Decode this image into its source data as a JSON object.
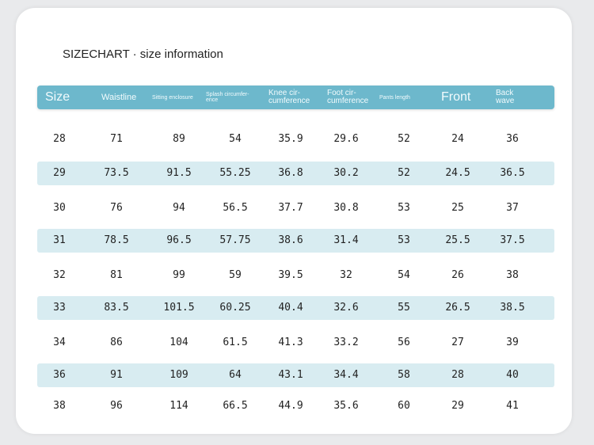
{
  "title": "SIZECHART · size information",
  "headers": [
    {
      "line1": "Size",
      "line2": ""
    },
    {
      "line1": "Waistline",
      "line2": ""
    },
    {
      "line1": "Sitting enclosure",
      "line2": ""
    },
    {
      "line1": "Splash circumfer-",
      "line2": "ence"
    },
    {
      "line1": "Knee cir-",
      "line2": "cumference"
    },
    {
      "line1": "Foot cir-",
      "line2": "cumference"
    },
    {
      "line1": "Pants length",
      "line2": ""
    },
    {
      "line1": "Front",
      "line2": ""
    },
    {
      "line1": "Back",
      "line2": "wave"
    }
  ],
  "rows": [
    [
      "28",
      "71",
      "89",
      "54",
      "35.9",
      "29.6",
      "52",
      "24",
      "36"
    ],
    [
      "29",
      "73.5",
      "91.5",
      "55.25",
      "36.8",
      "30.2",
      "52",
      "24.5",
      "36.5"
    ],
    [
      "30",
      "76",
      "94",
      "56.5",
      "37.7",
      "30.8",
      "53",
      "25",
      "37"
    ],
    [
      "31",
      "78.5",
      "96.5",
      "57.75",
      "38.6",
      "31.4",
      "53",
      "25.5",
      "37.5"
    ],
    [
      "32",
      "81",
      "99",
      "59",
      "39.5",
      "32",
      "54",
      "26",
      "38"
    ],
    [
      "33",
      "83.5",
      "101.5",
      "60.25",
      "40.4",
      "32.6",
      "55",
      "26.5",
      "38.5"
    ],
    [
      "34",
      "86",
      "104",
      "61.5",
      "41.3",
      "33.2",
      "56",
      "27",
      "39"
    ],
    [
      "36",
      "91",
      "109",
      "64",
      "43.1",
      "34.4",
      "58",
      "28",
      "40"
    ],
    [
      "38",
      "96",
      "114",
      "66.5",
      "44.9",
      "35.6",
      "60",
      "29",
      "41"
    ]
  ],
  "colors": {
    "header": "#6db8cc",
    "stripe": "#d8ecf1",
    "text": "#222222"
  }
}
